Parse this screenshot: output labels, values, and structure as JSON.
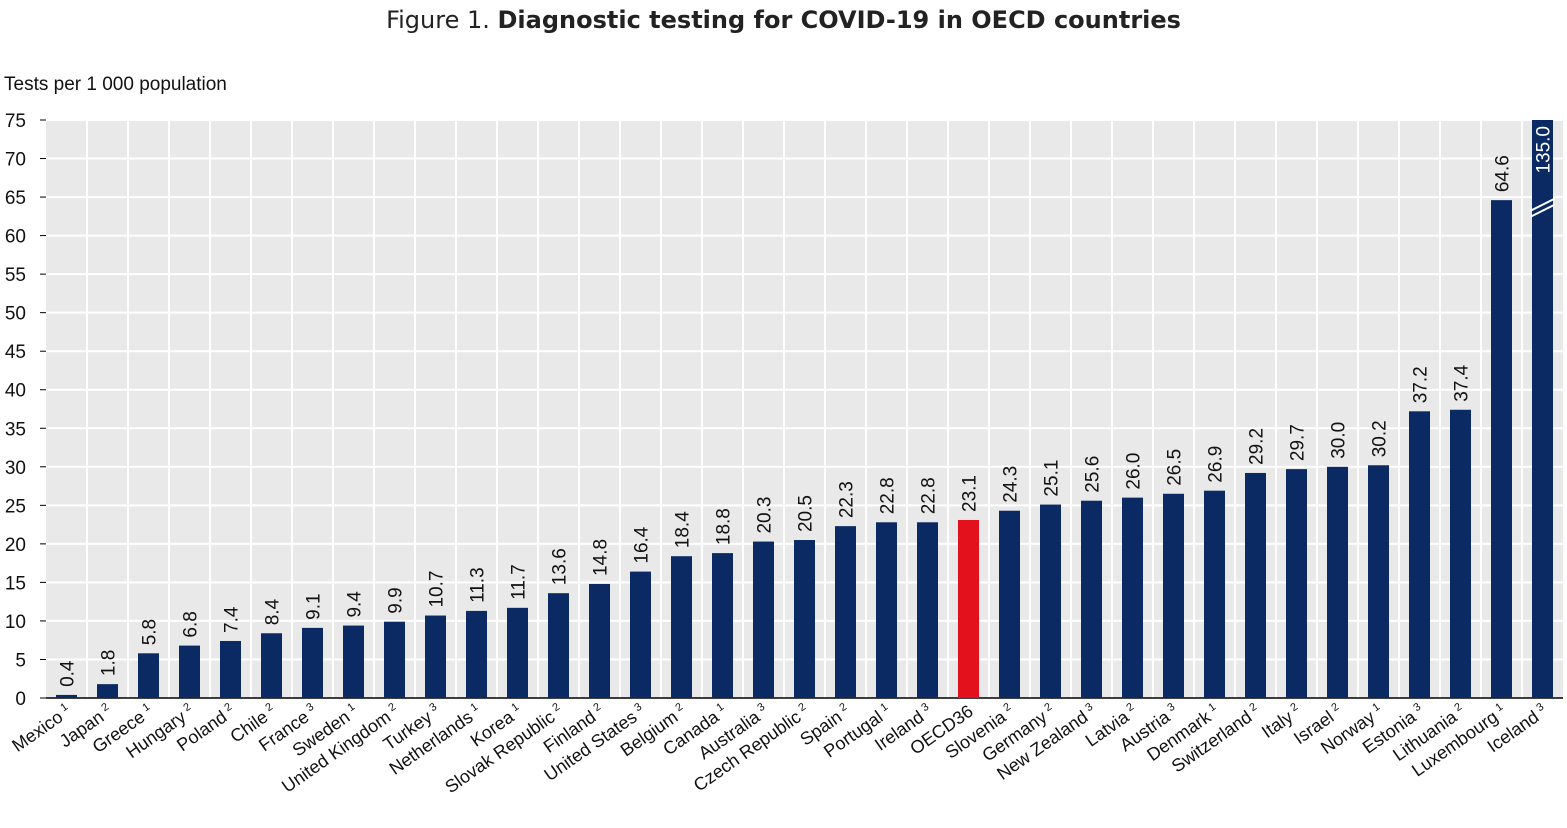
{
  "title": {
    "prefix": "Figure 1. ",
    "main": "Diagnostic testing for COVID-19 in OECD countries"
  },
  "colors": {
    "bar": "#0b2a63",
    "highlight": "#e3111c",
    "plot_bg": "#e9e9e9",
    "grid": "#ffffff"
  },
  "chart_data": {
    "type": "bar",
    "title": "Figure 1. Diagnostic testing for COVID-19 in OECD countries",
    "ylabel": "Tests per 1 000 population",
    "xlabel": "",
    "ylim": [
      0,
      75
    ],
    "yticks": [
      0,
      5,
      10,
      15,
      20,
      25,
      30,
      35,
      40,
      45,
      50,
      55,
      60,
      65,
      70,
      75
    ],
    "grid": true,
    "axis_break_on": "Iceland",
    "highlight": "OECD36",
    "categories": [
      "Mexico",
      "Japan",
      "Greece",
      "Hungary",
      "Poland",
      "Chile",
      "France",
      "Sweden",
      "United Kingdom",
      "Turkey",
      "Netherlands",
      "Korea",
      "Slovak Republic",
      "Finland",
      "United States",
      "Belgium",
      "Canada",
      "Australia",
      "Czech Republic",
      "Spain",
      "Portugal",
      "Ireland",
      "OECD36",
      "Slovenia",
      "Germany",
      "New Zealand",
      "Latvia",
      "Austria",
      "Denmark",
      "Switzerland",
      "Italy",
      "Israel",
      "Norway",
      "Estonia",
      "Lithuania",
      "Luxembourg",
      "Iceland"
    ],
    "footnotes": [
      "1",
      "2",
      "1",
      "2",
      "2",
      "2",
      "3",
      "1",
      "2",
      "3",
      "1",
      "1",
      "2",
      "2",
      "3",
      "2",
      "1",
      "3",
      "2",
      "2",
      "1",
      "3",
      "",
      "2",
      "2",
      "3",
      "2",
      "3",
      "1",
      "2",
      "2",
      "2",
      "1",
      "3",
      "2",
      "1",
      "3"
    ],
    "values": [
      0.4,
      1.8,
      5.8,
      6.8,
      7.4,
      8.4,
      9.1,
      9.4,
      9.9,
      10.7,
      11.3,
      11.7,
      13.6,
      14.8,
      16.4,
      18.4,
      18.8,
      20.3,
      20.5,
      22.3,
      22.8,
      22.8,
      23.1,
      24.3,
      25.1,
      25.6,
      26.0,
      26.5,
      26.9,
      29.2,
      29.7,
      30.0,
      30.2,
      37.2,
      37.4,
      64.6,
      135.0
    ],
    "data_labels": [
      "0.4",
      "1.8",
      "5.8",
      "6.8",
      "7.4",
      "8.4",
      "9.1",
      "9.4",
      "9.9",
      "10.7",
      "11.3",
      "11.7",
      "13.6",
      "14.8",
      "16.4",
      "18.4",
      "18.8",
      "20.3",
      "20.5",
      "22.3",
      "22.8",
      "22.8",
      "23.1",
      "24.3",
      "25.1",
      "25.6",
      "26.0",
      "26.5",
      "26.9",
      "29.2",
      "29.7",
      "30.0",
      "30.2",
      "37.2",
      "37.4",
      "64.6",
      "135.0"
    ]
  }
}
